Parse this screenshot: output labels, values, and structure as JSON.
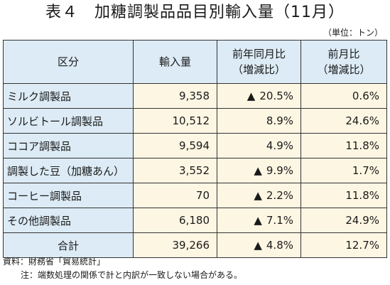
{
  "title": "表４　加糖調製品品目別輸入量（11月）",
  "unit": "（単位：トン）",
  "headers": {
    "category": "区分",
    "import_volume": "輸入量",
    "yoy": [
      "前年同月比",
      "（増減比）"
    ],
    "mom": [
      "前月比",
      "（増減比）"
    ]
  },
  "decrease_mark": "▲",
  "rows": [
    {
      "name": "ミルク調製品",
      "volume": "9,358",
      "yoy_neg": true,
      "yoy": "20.5%",
      "mom_neg": false,
      "mom": "0.6%"
    },
    {
      "name": "ソルビトール調製品",
      "volume": "10,512",
      "yoy_neg": false,
      "yoy": "8.9%",
      "mom_neg": false,
      "mom": "24.6%"
    },
    {
      "name": "ココア調製品",
      "volume": "9,594",
      "yoy_neg": false,
      "yoy": "4.9%",
      "mom_neg": false,
      "mom": "11.8%"
    },
    {
      "name": "調製した豆（加糖あん）",
      "volume": "3,552",
      "yoy_neg": true,
      "yoy": "9.9%",
      "mom_neg": false,
      "mom": "1.7%"
    },
    {
      "name": "コーヒー調製品",
      "volume": "70",
      "yoy_neg": true,
      "yoy": "2.2%",
      "mom_neg": false,
      "mom": "11.8%"
    },
    {
      "name": "その他調製品",
      "volume": "6,180",
      "yoy_neg": true,
      "yoy": "7.1%",
      "mom_neg": false,
      "mom": "24.9%"
    }
  ],
  "total": {
    "name": "合計",
    "volume": "39,266",
    "yoy_neg": true,
    "yoy": "4.8%",
    "mom_neg": false,
    "mom": "12.7%"
  },
  "footer": {
    "source": "資料：財務省「貿易統計」",
    "note": "注：端数処理の関係で計と内訳が一致しない場合がある。"
  },
  "colors": {
    "header_bg": "#dcebf5",
    "value_bg": "#fdf6e3",
    "border": "#333333"
  }
}
